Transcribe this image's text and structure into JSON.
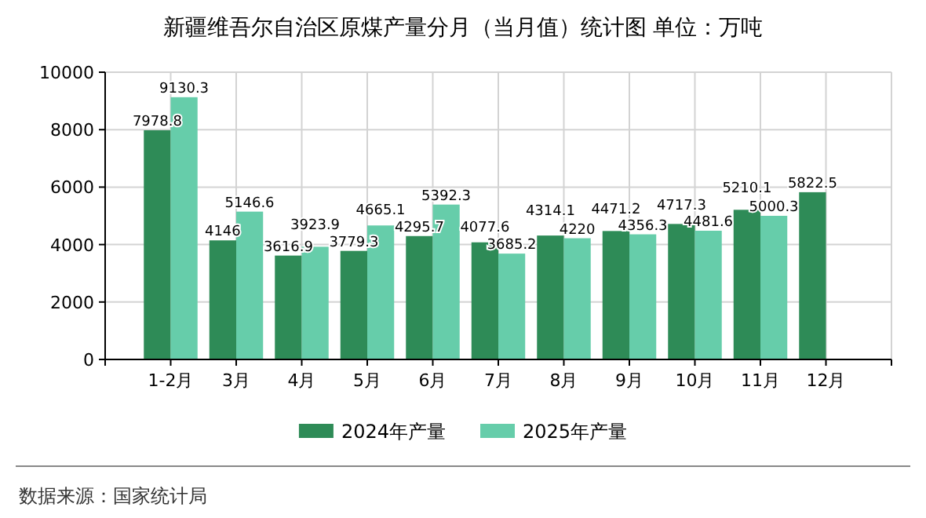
{
  "chart_data": {
    "type": "bar",
    "title": "新疆维吾尔自治区原煤产量分月（当月值）统计图 单位：万吨",
    "categories": [
      "1-2月",
      "3月",
      "4月",
      "5月",
      "6月",
      "7月",
      "8月",
      "9月",
      "10月",
      "11月",
      "12月"
    ],
    "series": [
      {
        "name": "2024年产量",
        "color": "#2e8b57",
        "values": [
          7978.8,
          4146,
          3616.9,
          3779.3,
          4295.7,
          4077.6,
          4314.1,
          4471.2,
          4717.3,
          5210.1,
          5822.5
        ]
      },
      {
        "name": "2025年产量",
        "color": "#66cdaa",
        "values": [
          9130.3,
          5146.6,
          3923.9,
          4665.1,
          5392.3,
          3685.2,
          4220,
          4356.3,
          4481.6,
          5000.3,
          null
        ]
      }
    ],
    "ylim": [
      0,
      10000
    ],
    "yticks": [
      0,
      2000,
      4000,
      6000,
      8000,
      10000
    ],
    "grid": true,
    "legend": "bottom",
    "data_labels": true,
    "annotations": [
      "数据来源：国家统计局"
    ]
  }
}
